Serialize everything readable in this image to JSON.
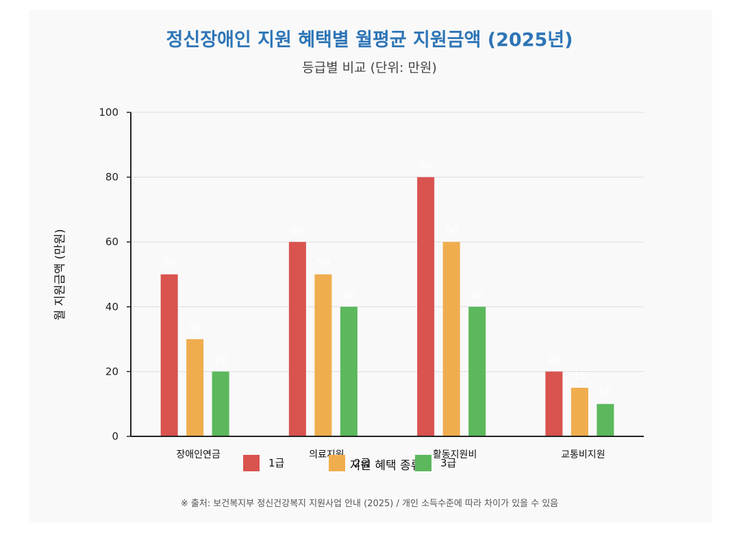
{
  "colors": {
    "title": "#2e75b6",
    "series": [
      "#d9534f",
      "#f0ad4e",
      "#5cb85c"
    ],
    "background": "#f9f9f9",
    "grid": "#dddddd",
    "axis": "#222222",
    "value_label": "#ffffff"
  },
  "chart_data": {
    "type": "bar",
    "title": "정신장애인 지원 혜택별 월평균 지원금액 (2025년)",
    "subtitle": "등급별 비교 (단위: 만원)",
    "categories": [
      "장애인연금",
      "의료지원",
      "활동지원비",
      "교통비지원"
    ],
    "series": [
      {
        "name": "1급",
        "values": [
          50,
          60,
          80,
          20
        ]
      },
      {
        "name": "2급",
        "values": [
          30,
          50,
          60,
          15
        ]
      },
      {
        "name": "3급",
        "values": [
          20,
          40,
          40,
          10
        ]
      }
    ],
    "xlabel": "지원 혜택 종류",
    "ylabel": "월 지원금액 (만원)",
    "ylim": [
      0,
      100
    ],
    "yticks": [
      0,
      20,
      40,
      60,
      80,
      100
    ],
    "grid": true,
    "legend": "bottom-center"
  },
  "footnote": "※ 출처: 보건복지부 정신건강복지 지원사업 안내 (2025) / 개인 소득수준에 따라 차이가 있을 수 있음"
}
